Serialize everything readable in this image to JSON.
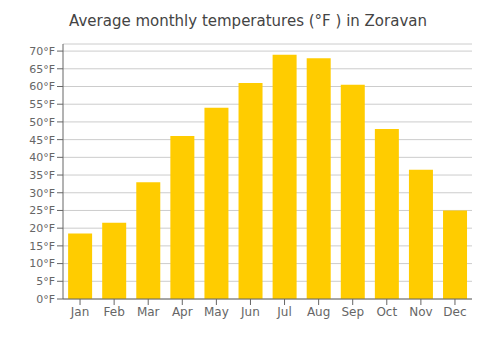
{
  "chart_data": {
    "type": "bar",
    "title": "Average monthly temperatures (°F ) in Zoravan",
    "categories": [
      "Jan",
      "Feb",
      "Mar",
      "Apr",
      "May",
      "Jun",
      "Jul",
      "Aug",
      "Sep",
      "Oct",
      "Nov",
      "Dec"
    ],
    "values": [
      18.5,
      21.5,
      33.0,
      46.0,
      54.0,
      61.0,
      69.0,
      68.0,
      60.5,
      48.0,
      36.5,
      25.0
    ],
    "color": "#FFCC00",
    "ylim": [
      0,
      72
    ],
    "yticks": [
      {
        "value": 0,
        "label": "0°F"
      },
      {
        "value": 5,
        "label": "5°F"
      },
      {
        "value": 10,
        "label": "10°F"
      },
      {
        "value": 15,
        "label": "15°F"
      },
      {
        "value": 20,
        "label": "20°F"
      },
      {
        "value": 25,
        "label": "25°F"
      },
      {
        "value": 30,
        "label": "30°F"
      },
      {
        "value": 35,
        "label": "35°F"
      },
      {
        "value": 40,
        "label": "40°F"
      },
      {
        "value": 45,
        "label": "45°F"
      },
      {
        "value": 50,
        "label": "50°F"
      },
      {
        "value": 55,
        "label": "55°F"
      },
      {
        "value": 60,
        "label": "60°F"
      },
      {
        "value": 65,
        "label": "65°F"
      },
      {
        "value": 70,
        "label": "70°F"
      }
    ],
    "grid": true
  }
}
